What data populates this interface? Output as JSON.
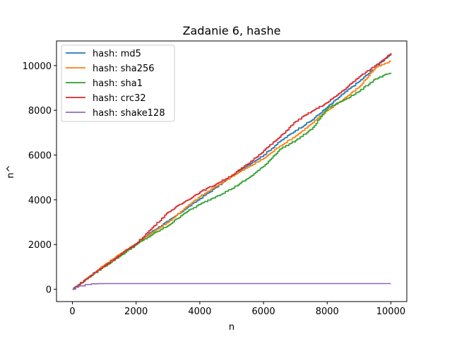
{
  "chart_data": {
    "type": "line",
    "title": "Zadanie 6, hashe",
    "xlabel": "n",
    "ylabel": "n^",
    "xlim": [
      -500,
      10500
    ],
    "ylim": [
      -550,
      11100
    ],
    "xticks": [
      0,
      2000,
      4000,
      6000,
      8000,
      10000
    ],
    "yticks": [
      0,
      2000,
      4000,
      6000,
      8000,
      10000
    ],
    "grid": false,
    "legend_position": "top-left",
    "series": [
      {
        "name": "hash: md5",
        "color": "#1f77b4",
        "x": [
          0,
          500,
          1000,
          1500,
          2000,
          2500,
          3000,
          3500,
          4000,
          4500,
          5000,
          5500,
          6000,
          6500,
          7000,
          7500,
          8000,
          8500,
          9000,
          9500,
          10000
        ],
        "y": [
          0,
          550,
          1080,
          1550,
          2030,
          2600,
          3050,
          3550,
          4050,
          4550,
          5050,
          5550,
          6000,
          6600,
          7100,
          7550,
          8150,
          8750,
          9300,
          9900,
          10560
        ]
      },
      {
        "name": "hash: sha256",
        "color": "#ff7f0e",
        "x": [
          0,
          500,
          1000,
          1500,
          2000,
          2500,
          3000,
          3500,
          4000,
          4500,
          5000,
          5500,
          6000,
          6500,
          7000,
          7500,
          8000,
          8500,
          9000,
          9500,
          10000
        ],
        "y": [
          0,
          550,
          1100,
          1600,
          2050,
          2550,
          3000,
          3600,
          4150,
          4600,
          5050,
          5450,
          5850,
          6400,
          6850,
          7400,
          8000,
          8500,
          9050,
          9900,
          10200
        ]
      },
      {
        "name": "hash: sha1",
        "color": "#2ca02c",
        "x": [
          0,
          500,
          1000,
          1500,
          2000,
          2500,
          3000,
          3500,
          4000,
          4500,
          5000,
          5500,
          6000,
          6500,
          7000,
          7500,
          8000,
          8500,
          9000,
          9500,
          10000
        ],
        "y": [
          0,
          530,
          1020,
          1500,
          2000,
          2450,
          2850,
          3400,
          3800,
          4150,
          4500,
          4950,
          5500,
          6250,
          6650,
          7150,
          8100,
          8450,
          8850,
          9400,
          9680
        ]
      },
      {
        "name": "hash: crc32",
        "color": "#d62728",
        "x": [
          0,
          500,
          1000,
          1500,
          2000,
          2500,
          3000,
          3500,
          4000,
          4500,
          5000,
          5500,
          6000,
          6500,
          7000,
          7500,
          8000,
          8500,
          9000,
          9500,
          10000
        ],
        "y": [
          0,
          540,
          1050,
          1550,
          2050,
          2750,
          3450,
          3900,
          4350,
          4700,
          5100,
          5600,
          6200,
          6800,
          7500,
          7950,
          8350,
          8900,
          9500,
          10000,
          10550
        ]
      },
      {
        "name": "hash: shake128",
        "color": "#9467bd",
        "x": [
          0,
          100,
          200,
          400,
          600,
          800,
          1000,
          2000,
          4000,
          6000,
          8000,
          10000
        ],
        "y": [
          0,
          90,
          150,
          215,
          245,
          252,
          255,
          255,
          255,
          255,
          255,
          255
        ]
      }
    ]
  }
}
